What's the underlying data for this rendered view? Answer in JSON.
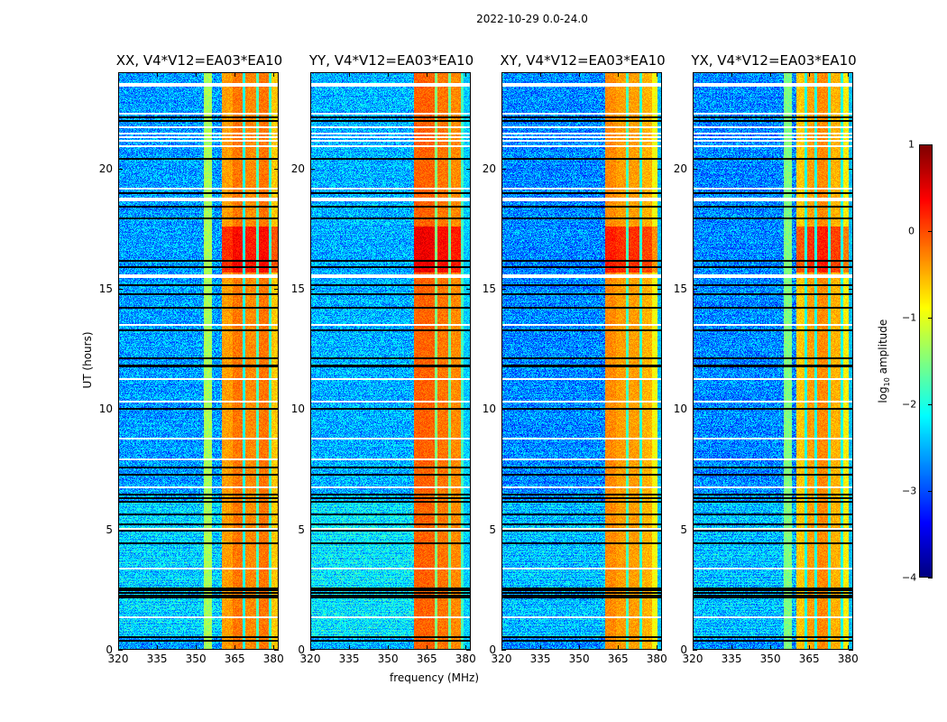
{
  "figure": {
    "suptitle": "2022-10-29 0.0-24.0",
    "xlabel": "frequency (MHz)",
    "ylabel": "UT (hours)"
  },
  "colorbar": {
    "label_prefix": "log",
    "label_sub": "10",
    "label_suffix": " amplitude",
    "ticks": [
      "1",
      "0",
      "−1",
      "−2",
      "−3",
      "−4"
    ],
    "range": [
      -4,
      1
    ],
    "colormap": "jet"
  },
  "chart_data": {
    "type": "heatmap",
    "title": "2022-10-29 0.0-24.0",
    "xlabel": "frequency (MHz)",
    "ylabel": "UT (hours)",
    "colorbar_label": "log10 amplitude",
    "xlim": [
      320,
      382
    ],
    "ylim": [
      0,
      24
    ],
    "zlim": [
      -4,
      1
    ],
    "xticks": [
      "320",
      "335",
      "350",
      "365",
      "380"
    ],
    "yticks": [
      "0",
      "5",
      "10",
      "15",
      "20"
    ],
    "panels": [
      {
        "title": "XX, V4*V12=EA03*EA10",
        "background_level": -2.6,
        "rfi_bands": [
          {
            "f_start": 353,
            "f_end": 356,
            "level": -1.3
          },
          {
            "f_start": 360,
            "f_end": 364,
            "level": -0.4
          },
          {
            "f_start": 364,
            "f_end": 368,
            "level": -0.2
          },
          {
            "f_start": 368,
            "f_end": 369,
            "level": -2.0
          },
          {
            "f_start": 369,
            "f_end": 373,
            "level": -0.3
          },
          {
            "f_start": 373,
            "f_end": 374,
            "level": -1.8
          },
          {
            "f_start": 374,
            "f_end": 378,
            "level": -0.2
          },
          {
            "f_start": 378,
            "f_end": 379,
            "level": -1.9
          },
          {
            "f_start": 379,
            "f_end": 382,
            "level": -0.6
          }
        ],
        "strong_interval_hours": [
          15.7,
          17.6
        ]
      },
      {
        "title": "YY, V4*V12=EA03*EA10",
        "background_level": -2.5,
        "rfi_bands": [
          {
            "f_start": 360,
            "f_end": 364,
            "level": -0.1
          },
          {
            "f_start": 364,
            "f_end": 368,
            "level": -0.1
          },
          {
            "f_start": 368,
            "f_end": 369,
            "level": -1.5
          },
          {
            "f_start": 369,
            "f_end": 373,
            "level": -0.2
          },
          {
            "f_start": 373,
            "f_end": 374,
            "level": -1.6
          },
          {
            "f_start": 374,
            "f_end": 378,
            "level": -0.3
          },
          {
            "f_start": 378,
            "f_end": 379,
            "level": -1.8
          },
          {
            "f_start": 379,
            "f_end": 382,
            "level": -2.5
          }
        ],
        "strong_interval_hours": [
          15.7,
          17.6
        ]
      },
      {
        "title": "XY, V4*V12=EA03*EA10",
        "background_level": -2.7,
        "rfi_bands": [
          {
            "f_start": 360,
            "f_end": 364,
            "level": -0.3
          },
          {
            "f_start": 364,
            "f_end": 368,
            "level": -0.4
          },
          {
            "f_start": 368,
            "f_end": 369,
            "level": -1.8
          },
          {
            "f_start": 369,
            "f_end": 373,
            "level": -0.4
          },
          {
            "f_start": 373,
            "f_end": 374,
            "level": -1.9
          },
          {
            "f_start": 374,
            "f_end": 378,
            "level": -0.5
          },
          {
            "f_start": 378,
            "f_end": 380,
            "level": -0.9
          },
          {
            "f_start": 380,
            "f_end": 382,
            "level": -2.5
          }
        ],
        "strong_interval_hours": [
          15.7,
          17.6
        ]
      },
      {
        "title": "YX, V4*V12=EA03*EA10",
        "background_level": -2.7,
        "rfi_bands": [
          {
            "f_start": 355,
            "f_end": 358,
            "level": -1.5
          },
          {
            "f_start": 360,
            "f_end": 363,
            "level": -0.6
          },
          {
            "f_start": 363,
            "f_end": 364,
            "level": -2.0
          },
          {
            "f_start": 364,
            "f_end": 367,
            "level": -0.4
          },
          {
            "f_start": 367,
            "f_end": 368,
            "level": -2.0
          },
          {
            "f_start": 368,
            "f_end": 372,
            "level": -0.3
          },
          {
            "f_start": 372,
            "f_end": 373,
            "level": -2.0
          },
          {
            "f_start": 373,
            "f_end": 377,
            "level": -0.5
          },
          {
            "f_start": 377,
            "f_end": 378,
            "level": -2.0
          },
          {
            "f_start": 378,
            "f_end": 380,
            "level": -0.8
          },
          {
            "f_start": 380,
            "f_end": 382,
            "level": -2.5
          }
        ],
        "strong_interval_hours": [
          15.7,
          17.6
        ]
      }
    ],
    "blank_rows_hours": [
      23.55,
      22.3,
      21.75,
      21.5,
      21.35,
      21.2,
      20.95,
      19.2,
      18.8,
      15.6,
      13.55,
      11.3,
      10.35,
      8.8,
      7.95,
      6.8,
      5.05,
      3.4,
      2.25,
      1.4
    ],
    "flagged_rows_hours": [
      22.15,
      22.0,
      20.45,
      19.0,
      18.45,
      17.95,
      16.2,
      15.95,
      15.2,
      14.8,
      14.25,
      13.3,
      12.15,
      11.85,
      11.8,
      10.05,
      7.6,
      7.3,
      6.5,
      6.35,
      6.2,
      5.65,
      5.25,
      5.0,
      4.45,
      2.6,
      2.5,
      2.4,
      2.3,
      2.2,
      0.55,
      0.4
    ]
  }
}
